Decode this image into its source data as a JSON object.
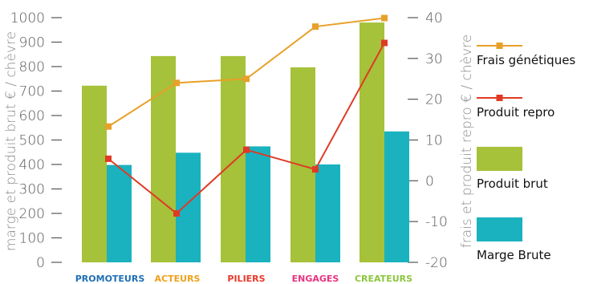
{
  "chart_data": {
    "type": "bar+line",
    "categories": [
      "PROMOTEURS",
      "ACTEURS",
      "PILIERS",
      "ENGAGES",
      "CREATEURS"
    ],
    "category_colors": [
      "#1f6fb5",
      "#f0a11c",
      "#e8392a",
      "#e8337f",
      "#8cc63f"
    ],
    "y_left": {
      "label": "marge et produit brut € / chèvre",
      "lim": [
        0,
        1000
      ],
      "ticks": [
        "0",
        "100",
        "200",
        "300",
        "400",
        "500",
        "600",
        "700",
        "800",
        "900",
        "1000"
      ]
    },
    "y_right": {
      "label": "frais et produit repro € / chèvre",
      "lim": [
        -20,
        40
      ],
      "ticks": [
        "-20",
        "-10",
        "0",
        "10",
        "20",
        "30",
        "40"
      ]
    },
    "bar_series": [
      {
        "name": "Produit brut",
        "color": "#a6c13a",
        "values": [
          722,
          843,
          843,
          797,
          980
        ]
      },
      {
        "name": "Marge Brute",
        "color": "#1ab2bf",
        "values": [
          398,
          448,
          474,
          400,
          535
        ]
      }
    ],
    "line_series": [
      {
        "name": "Frais génétiques",
        "color": "#e8a028",
        "values": [
          13.3,
          24.0,
          25.0,
          37.8,
          39.9
        ]
      },
      {
        "name": "Produit repro",
        "color": "#e03a25",
        "values": [
          5.4,
          -8.0,
          7.6,
          2.8,
          33.8
        ]
      }
    ],
    "legend": [
      "Frais génétiques",
      "Produit repro",
      "Produit brut",
      "Marge Brute"
    ],
    "legend_position": "right",
    "grid": false
  }
}
